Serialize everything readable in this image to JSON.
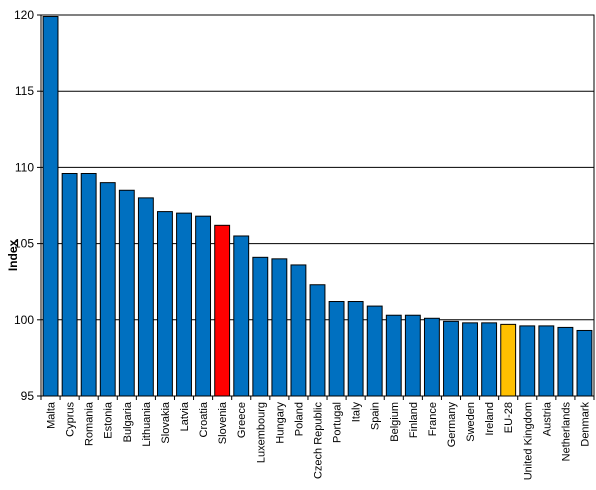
{
  "chart_data": {
    "type": "bar",
    "title": "",
    "xlabel": "",
    "ylabel": "Index",
    "ylim": [
      95,
      120
    ],
    "yticks": [
      95,
      100,
      105,
      110,
      115,
      120
    ],
    "grid": true,
    "legend": "none",
    "categories": [
      "Malta",
      "Cyprus",
      "Romania",
      "Estonia",
      "Bulgaria",
      "Lithuania",
      "Slovakia",
      "Latvia",
      "Croatia",
      "Slovenia",
      "Greece",
      "Luxembourg",
      "Hungary",
      "Poland",
      "Czech Republic",
      "Portugal",
      "Italy",
      "Spain",
      "Belgium",
      "Finland",
      "France",
      "Germany",
      "Sweden",
      "Ireland",
      "EU-28",
      "United Kingdom",
      "Austria",
      "Netherlands",
      "Denmark"
    ],
    "values": [
      119.9,
      109.6,
      109.6,
      109.0,
      108.5,
      108.0,
      107.1,
      107.0,
      106.8,
      106.2,
      105.5,
      104.1,
      104.0,
      103.6,
      102.3,
      101.2,
      101.2,
      100.9,
      100.3,
      100.3,
      100.1,
      99.9,
      99.8,
      99.8,
      99.7,
      99.6,
      99.6,
      99.5,
      99.3
    ],
    "colors": {
      "default": "#0070C0",
      "highlight": "#FF0000",
      "average": "#FFC000",
      "outline": "#000000",
      "grid": "#000000"
    },
    "highlight_category": "Slovenia",
    "average_category": "EU-28"
  }
}
